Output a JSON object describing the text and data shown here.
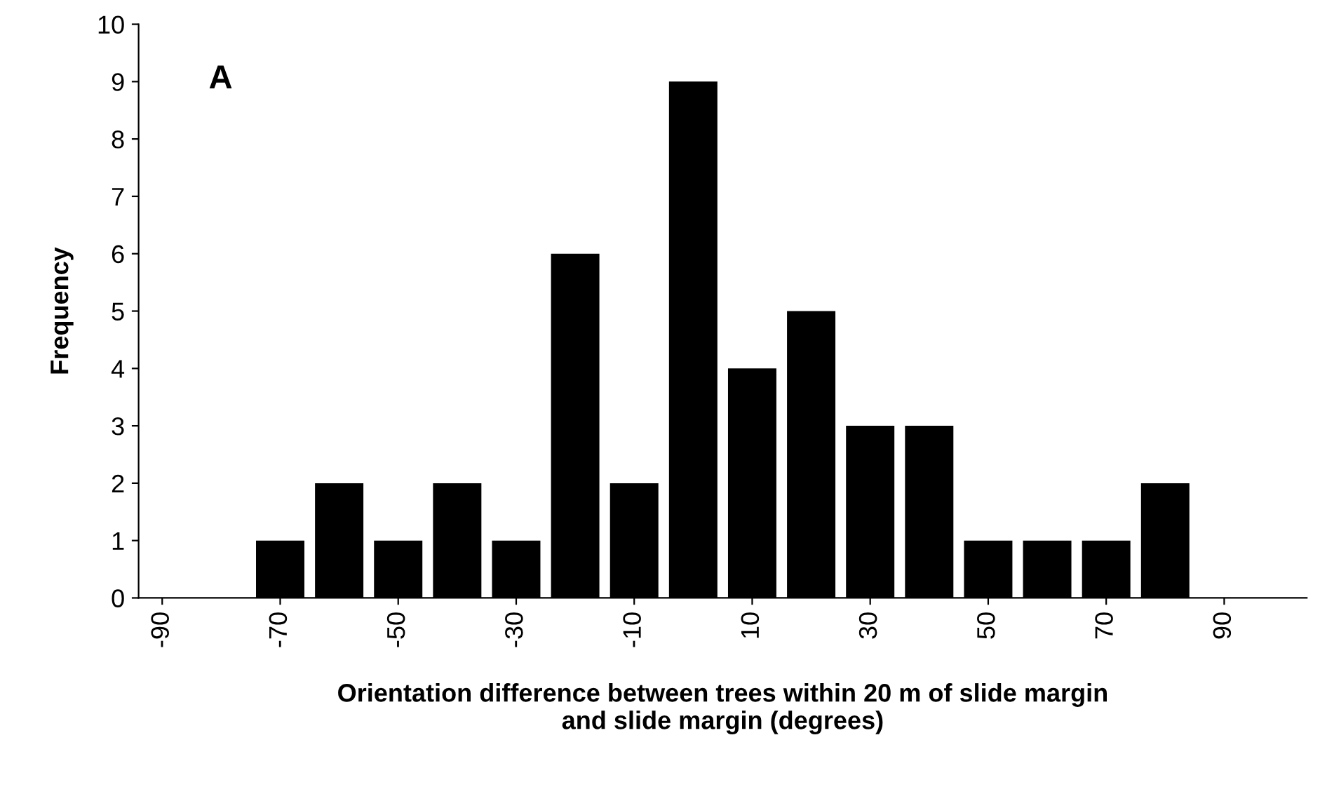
{
  "chart_data": {
    "type": "histogram",
    "annotations": [
      "A"
    ],
    "xlabel": "Orientation difference between trees within 20 m of slide margin\nand slide margin (degrees)",
    "ylabel": "Frequency",
    "bins": [
      -75,
      -65,
      -55,
      -45,
      -35,
      -25,
      -15,
      -5,
      5,
      15,
      25,
      35,
      45,
      55,
      65,
      75,
      85
    ],
    "values": [
      1,
      2,
      1,
      2,
      1,
      6,
      2,
      9,
      4,
      5,
      3,
      3,
      1,
      1,
      1,
      2
    ],
    "color": "#000000",
    "xlim": [
      -94,
      104
    ],
    "xticks": [
      -90,
      -70,
      -50,
      -30,
      -10,
      10,
      30,
      50,
      70,
      90
    ],
    "ylim": [
      0,
      10
    ],
    "yticks": [
      0,
      1,
      2,
      3,
      4,
      5,
      6,
      7,
      8,
      9,
      10
    ],
    "grid": false
  }
}
